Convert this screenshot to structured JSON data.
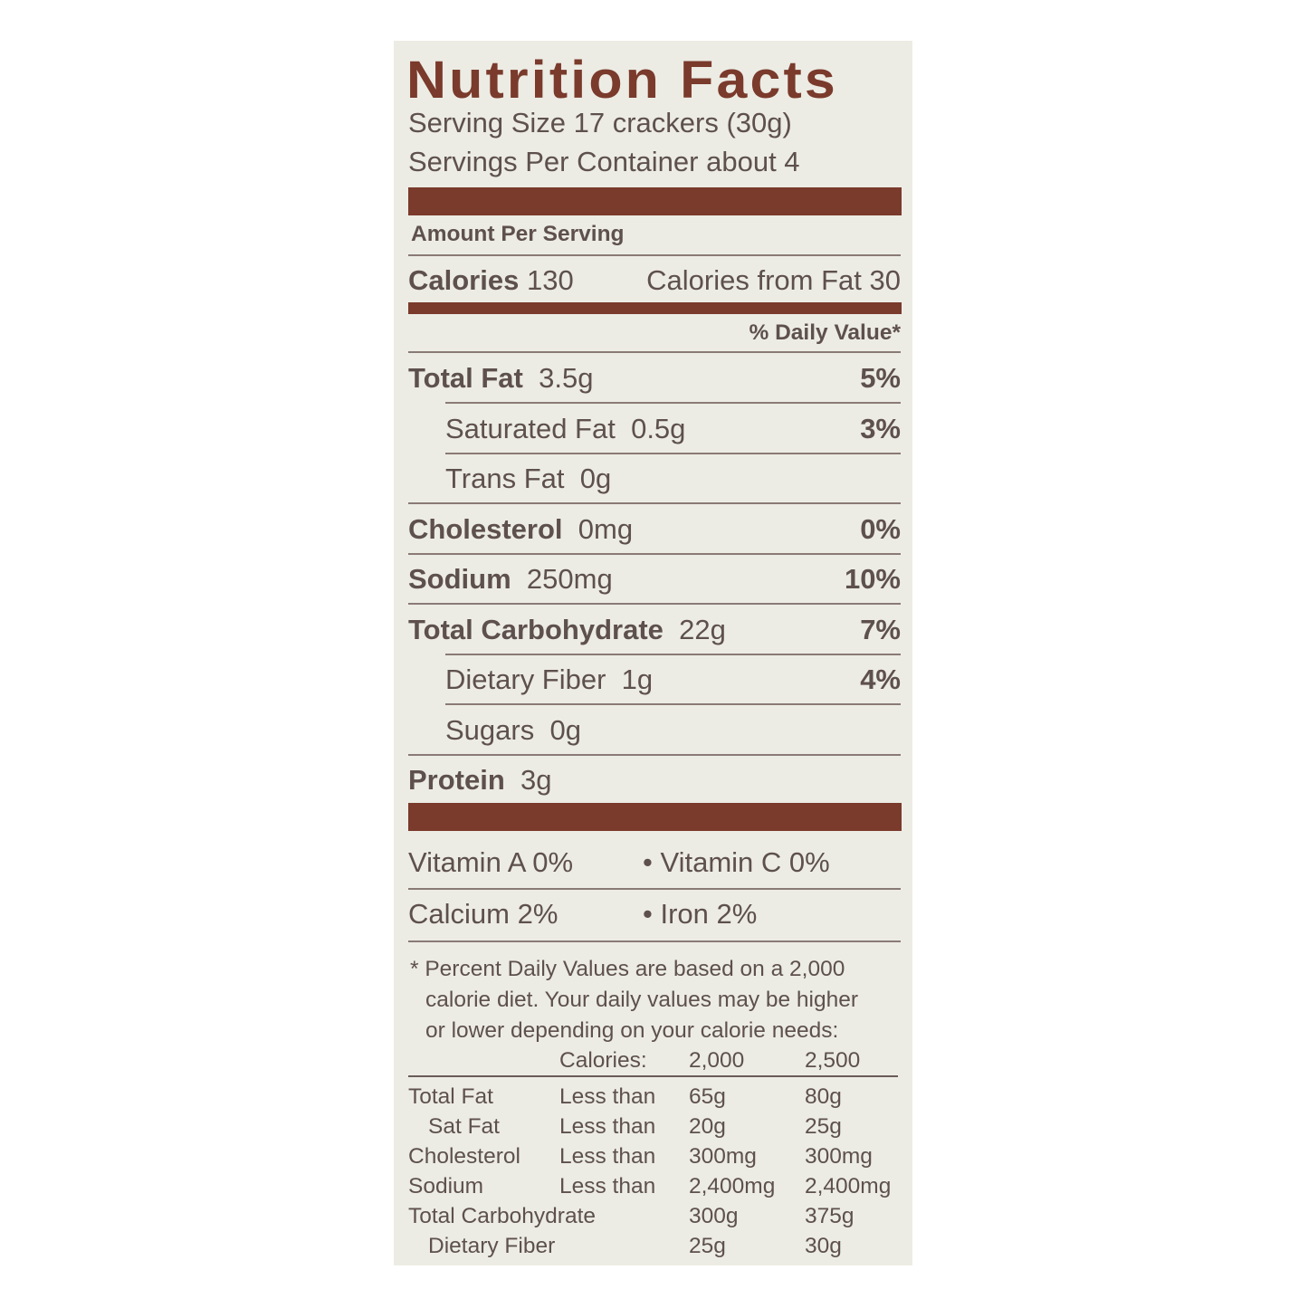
{
  "title": "Nutrition Facts",
  "serving_size": "Serving Size  17 crackers (30g)",
  "servings_per_container": "Servings Per Container about 4",
  "amount_per_serving": "Amount Per Serving",
  "calories": {
    "label": "Calories",
    "value": "130",
    "from_fat": "Calories from Fat 30"
  },
  "daily_value_header": "% Daily Value*",
  "nutrients": [
    {
      "name": "Total Fat",
      "amount": "3.5g",
      "dv": "5%"
    },
    {
      "name": "Saturated Fat",
      "amount": "0.5g",
      "dv": "3%"
    },
    {
      "name": "Trans Fat",
      "amount": "0g",
      "dv": ""
    },
    {
      "name": "Cholesterol",
      "amount": "0mg",
      "dv": "0%"
    },
    {
      "name": "Sodium",
      "amount": "250mg",
      "dv": "10%"
    },
    {
      "name": "Total Carbohydrate",
      "amount": "22g",
      "dv": "7%"
    },
    {
      "name": "Dietary Fiber",
      "amount": "1g",
      "dv": "4%"
    },
    {
      "name": "Sugars",
      "amount": "0g",
      "dv": ""
    },
    {
      "name": "Protein",
      "amount": "3g",
      "dv": ""
    }
  ],
  "vitamins": {
    "row1_left": "Vitamin A  0%",
    "row1_right": "• Vitamin C  0%",
    "row2_left": "Calcium  2%",
    "row2_right": "• Iron 2%"
  },
  "footnote": [
    "* Percent Daily Values are based on a 2,000",
    "calorie diet. Your daily values may be higher",
    "or lower depending on your calorie needs:"
  ],
  "dv_table": {
    "header": [
      "",
      "Calories:",
      "2,000",
      "2,500"
    ],
    "rows": [
      [
        "Total Fat",
        "Less than",
        "65g",
        "80g"
      ],
      [
        "Sat Fat",
        "Less than",
        "20g",
        "25g"
      ],
      [
        "Cholesterol",
        "Less than",
        "300mg",
        "300mg"
      ],
      [
        "Sodium",
        "Less than",
        "2,400mg",
        "2,400mg"
      ],
      [
        "Total Carbohydrate",
        "",
        "300g",
        "375g"
      ],
      [
        "Dietary Fiber",
        "",
        "25g",
        "30g"
      ]
    ]
  },
  "colors": {
    "brand_brown": "#7a3a2c",
    "text": "#5e504d",
    "background": "#ecece4"
  }
}
